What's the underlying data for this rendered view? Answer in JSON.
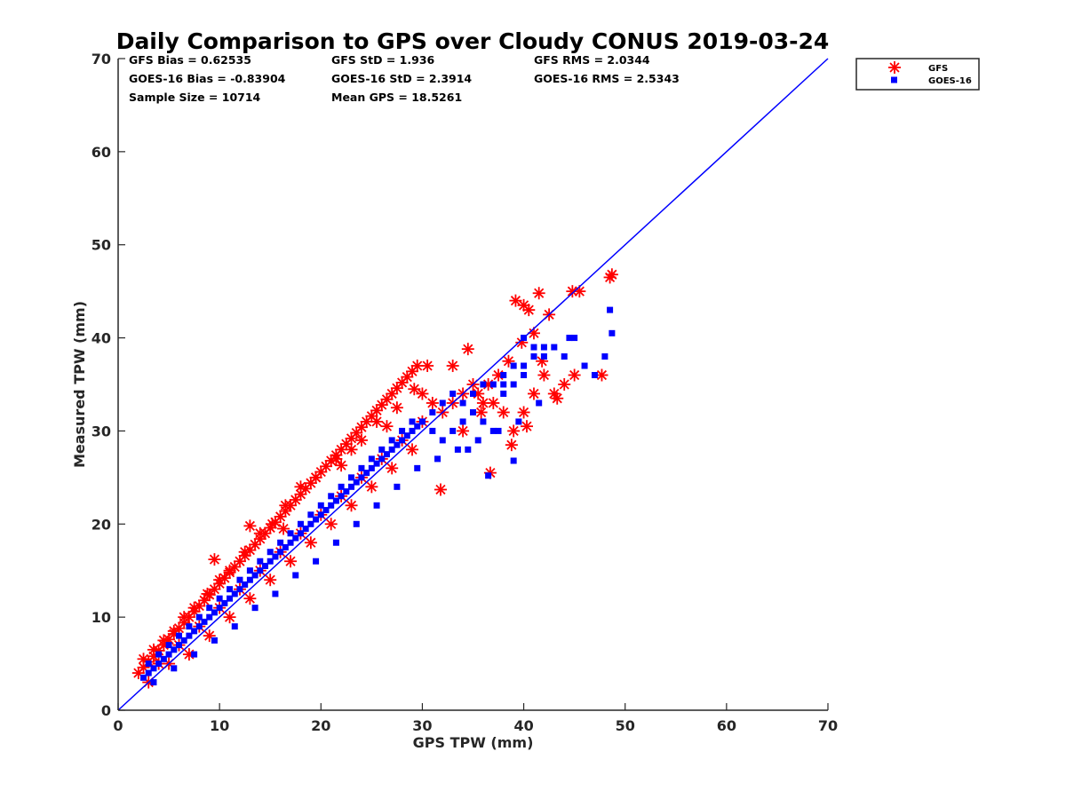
{
  "chart_data": {
    "type": "scatter",
    "title": "Daily Comparison to GPS over Cloudy CONUS 2019-03-24",
    "xlabel": "GPS TPW (mm)",
    "ylabel": "Measured TPW (mm)",
    "xlim": [
      0,
      70
    ],
    "ylim": [
      0,
      70
    ],
    "xticks": [
      "0",
      "10",
      "20",
      "30",
      "40",
      "50",
      "60",
      "70"
    ],
    "yticks": [
      "0",
      "10",
      "20",
      "30",
      "40",
      "50",
      "60",
      "70"
    ],
    "grid": false,
    "legend_position": "top-right-outside",
    "reference_line": {
      "x": [
        0,
        70
      ],
      "y": [
        0,
        70
      ],
      "color": "#0000ff"
    },
    "stats": [
      [
        "GFS Bias = 0.62535",
        "GFS StD = 1.936",
        "GFS RMS = 2.0344"
      ],
      [
        "GOES-16 Bias = -0.83904",
        "GOES-16 StD = 2.3914",
        "GOES-16 RMS = 2.5343"
      ],
      [
        "Sample Size = 10714",
        "Mean GPS = 18.5261"
      ]
    ],
    "series": [
      {
        "name": "GFS",
        "marker": "asterisk",
        "color": "#ff0000",
        "x": [
          2,
          2.5,
          3,
          3.5,
          4,
          4.5,
          5,
          5.5,
          6,
          6.5,
          7,
          7.5,
          8,
          8.5,
          9,
          9.5,
          10,
          10.5,
          11,
          11.5,
          12,
          12.5,
          13,
          13.5,
          14,
          14.5,
          15,
          15.5,
          16,
          16.5,
          17,
          17.5,
          18,
          18.5,
          19,
          19.5,
          20,
          20.5,
          21,
          21.5,
          22,
          22.5,
          23,
          23.5,
          24,
          24.5,
          25,
          25.5,
          26,
          26.5,
          27,
          27.5,
          28,
          28.5,
          29,
          29.5,
          30,
          31,
          32,
          33,
          34,
          35,
          36,
          37,
          38,
          39,
          40,
          41,
          42,
          43,
          44,
          45,
          3,
          5,
          7,
          9,
          11,
          13,
          15,
          17,
          19,
          21,
          23,
          25,
          27,
          29,
          4,
          6,
          8,
          10,
          12,
          14,
          16,
          18,
          20,
          22,
          24,
          26,
          28,
          30,
          36.7,
          31.8,
          39.2,
          40.5,
          41.5,
          44.8,
          48.5,
          48.7,
          47.7,
          43.3,
          40,
          38.5,
          37.5,
          36.5,
          35.5,
          41,
          42.5,
          45.5,
          16.3,
          13,
          9.5,
          22,
          26.5,
          33,
          34.5,
          39.8,
          40.3,
          41.8,
          38.8,
          35.8,
          34,
          30.5,
          29.2,
          27.5,
          25.5,
          24,
          23,
          21.5,
          19.5,
          18,
          16.5,
          15.2,
          14,
          12.5,
          11,
          10,
          8.8,
          7.5,
          6.5,
          5.5,
          4.5,
          3.5,
          2.5
        ],
        "y": [
          4,
          4.6,
          5.2,
          5.8,
          6.4,
          7,
          7.6,
          8.2,
          8.8,
          9.4,
          10,
          10.6,
          11.2,
          11.8,
          12.4,
          13,
          13.6,
          14.2,
          14.8,
          15.4,
          16,
          16.6,
          17.2,
          17.8,
          18.4,
          19,
          19.6,
          20.2,
          20.8,
          21.4,
          22,
          22.6,
          23.2,
          23.8,
          24.4,
          25,
          25.6,
          26.2,
          26.8,
          27.4,
          28,
          28.6,
          29.2,
          29.8,
          30.4,
          31,
          31.6,
          32.2,
          32.8,
          33.4,
          34,
          34.6,
          35.2,
          35.8,
          36.4,
          37,
          34,
          33,
          32,
          33,
          34,
          35,
          33,
          33,
          32,
          30,
          32,
          34,
          36,
          34,
          35,
          36,
          3,
          5,
          6,
          8,
          10,
          12,
          14,
          16,
          18,
          20,
          22,
          24,
          26,
          28,
          5,
          7,
          9,
          11,
          13,
          15,
          17,
          19,
          21,
          23,
          25,
          27,
          29,
          31,
          25.5,
          23.7,
          44,
          43,
          44.8,
          45,
          46.5,
          46.8,
          36,
          33.5,
          43.5,
          37.5,
          36,
          35,
          34,
          40.5,
          42.5,
          45,
          19.5,
          19.8,
          16.2,
          26.3,
          30.5,
          37,
          38.8,
          39.5,
          30.5,
          37.5,
          28.5,
          32,
          30,
          37,
          34.5,
          32.5,
          31,
          29,
          28,
          27,
          25,
          24,
          22,
          20,
          19,
          17,
          15,
          14,
          12.5,
          11,
          10,
          8.5,
          7.5,
          6.5,
          5.5
        ]
      },
      {
        "name": "GOES-16",
        "marker": "square",
        "color": "#0000ff",
        "x": [
          2.5,
          3,
          3.5,
          4,
          4.5,
          5,
          5.5,
          6,
          6.5,
          7,
          7.5,
          8,
          8.5,
          9,
          9.5,
          10,
          10.5,
          11,
          11.5,
          12,
          12.5,
          13,
          13.5,
          14,
          14.5,
          15,
          15.5,
          16,
          16.5,
          17,
          17.5,
          18,
          18.5,
          19,
          19.5,
          20,
          20.5,
          21,
          21.5,
          22,
          22.5,
          23,
          23.5,
          24,
          24.5,
          25,
          25.5,
          26,
          26.5,
          27,
          27.5,
          28,
          28.5,
          29,
          29.5,
          30,
          31,
          32,
          33,
          34,
          35,
          36,
          37,
          38,
          39,
          40,
          41,
          42,
          43,
          44,
          45,
          46,
          47,
          48,
          48.5,
          48.7,
          3,
          4,
          5,
          6,
          7,
          8,
          9,
          10,
          11,
          12,
          13,
          14,
          15,
          16,
          17,
          18,
          19,
          20,
          21,
          22,
          23,
          24,
          25,
          26,
          27,
          28,
          29,
          30,
          31,
          32,
          33,
          34,
          35,
          36,
          37,
          38,
          39,
          40,
          41,
          42,
          3.5,
          5.5,
          7.5,
          9.5,
          11.5,
          13.5,
          15.5,
          17.5,
          19.5,
          21.5,
          23.5,
          25.5,
          27.5,
          29.5,
          31.5,
          33.5,
          35.5,
          37.5,
          39.5,
          41.5,
          44.5,
          38,
          40,
          36.5,
          34.5,
          39
        ],
        "y": [
          3.5,
          4,
          4.5,
          5,
          5.5,
          6,
          6.5,
          7,
          7.5,
          8,
          8.5,
          9,
          9.5,
          10,
          10.5,
          11,
          11.5,
          12,
          12.5,
          13,
          13.5,
          14,
          14.5,
          15,
          15.5,
          16,
          16.5,
          17,
          17.5,
          18,
          18.5,
          19,
          19.5,
          20,
          20.5,
          21,
          21.5,
          22,
          22.5,
          23,
          23.5,
          24,
          24.5,
          25,
          25.5,
          26,
          26.5,
          27,
          27.5,
          28,
          28.5,
          29,
          29.5,
          30,
          30.5,
          31,
          32,
          33,
          34,
          33,
          34,
          35,
          35,
          36,
          37,
          37,
          38,
          38,
          39,
          38,
          40,
          37,
          36,
          38,
          43,
          40.5,
          5,
          6,
          7,
          8,
          9,
          10,
          11,
          12,
          13,
          14,
          15,
          16,
          17,
          18,
          19,
          20,
          21,
          22,
          23,
          24,
          25,
          26,
          27,
          28,
          29,
          30,
          31,
          31,
          30,
          29,
          30,
          31,
          32,
          31,
          30,
          34,
          35,
          36,
          39,
          39,
          3,
          4.5,
          6,
          7.5,
          9,
          11,
          12.5,
          14.5,
          16,
          18,
          20,
          22,
          24,
          26,
          27,
          28,
          29,
          30,
          31,
          33,
          40,
          35,
          40,
          25.2,
          28,
          26.8
        ]
      }
    ]
  }
}
